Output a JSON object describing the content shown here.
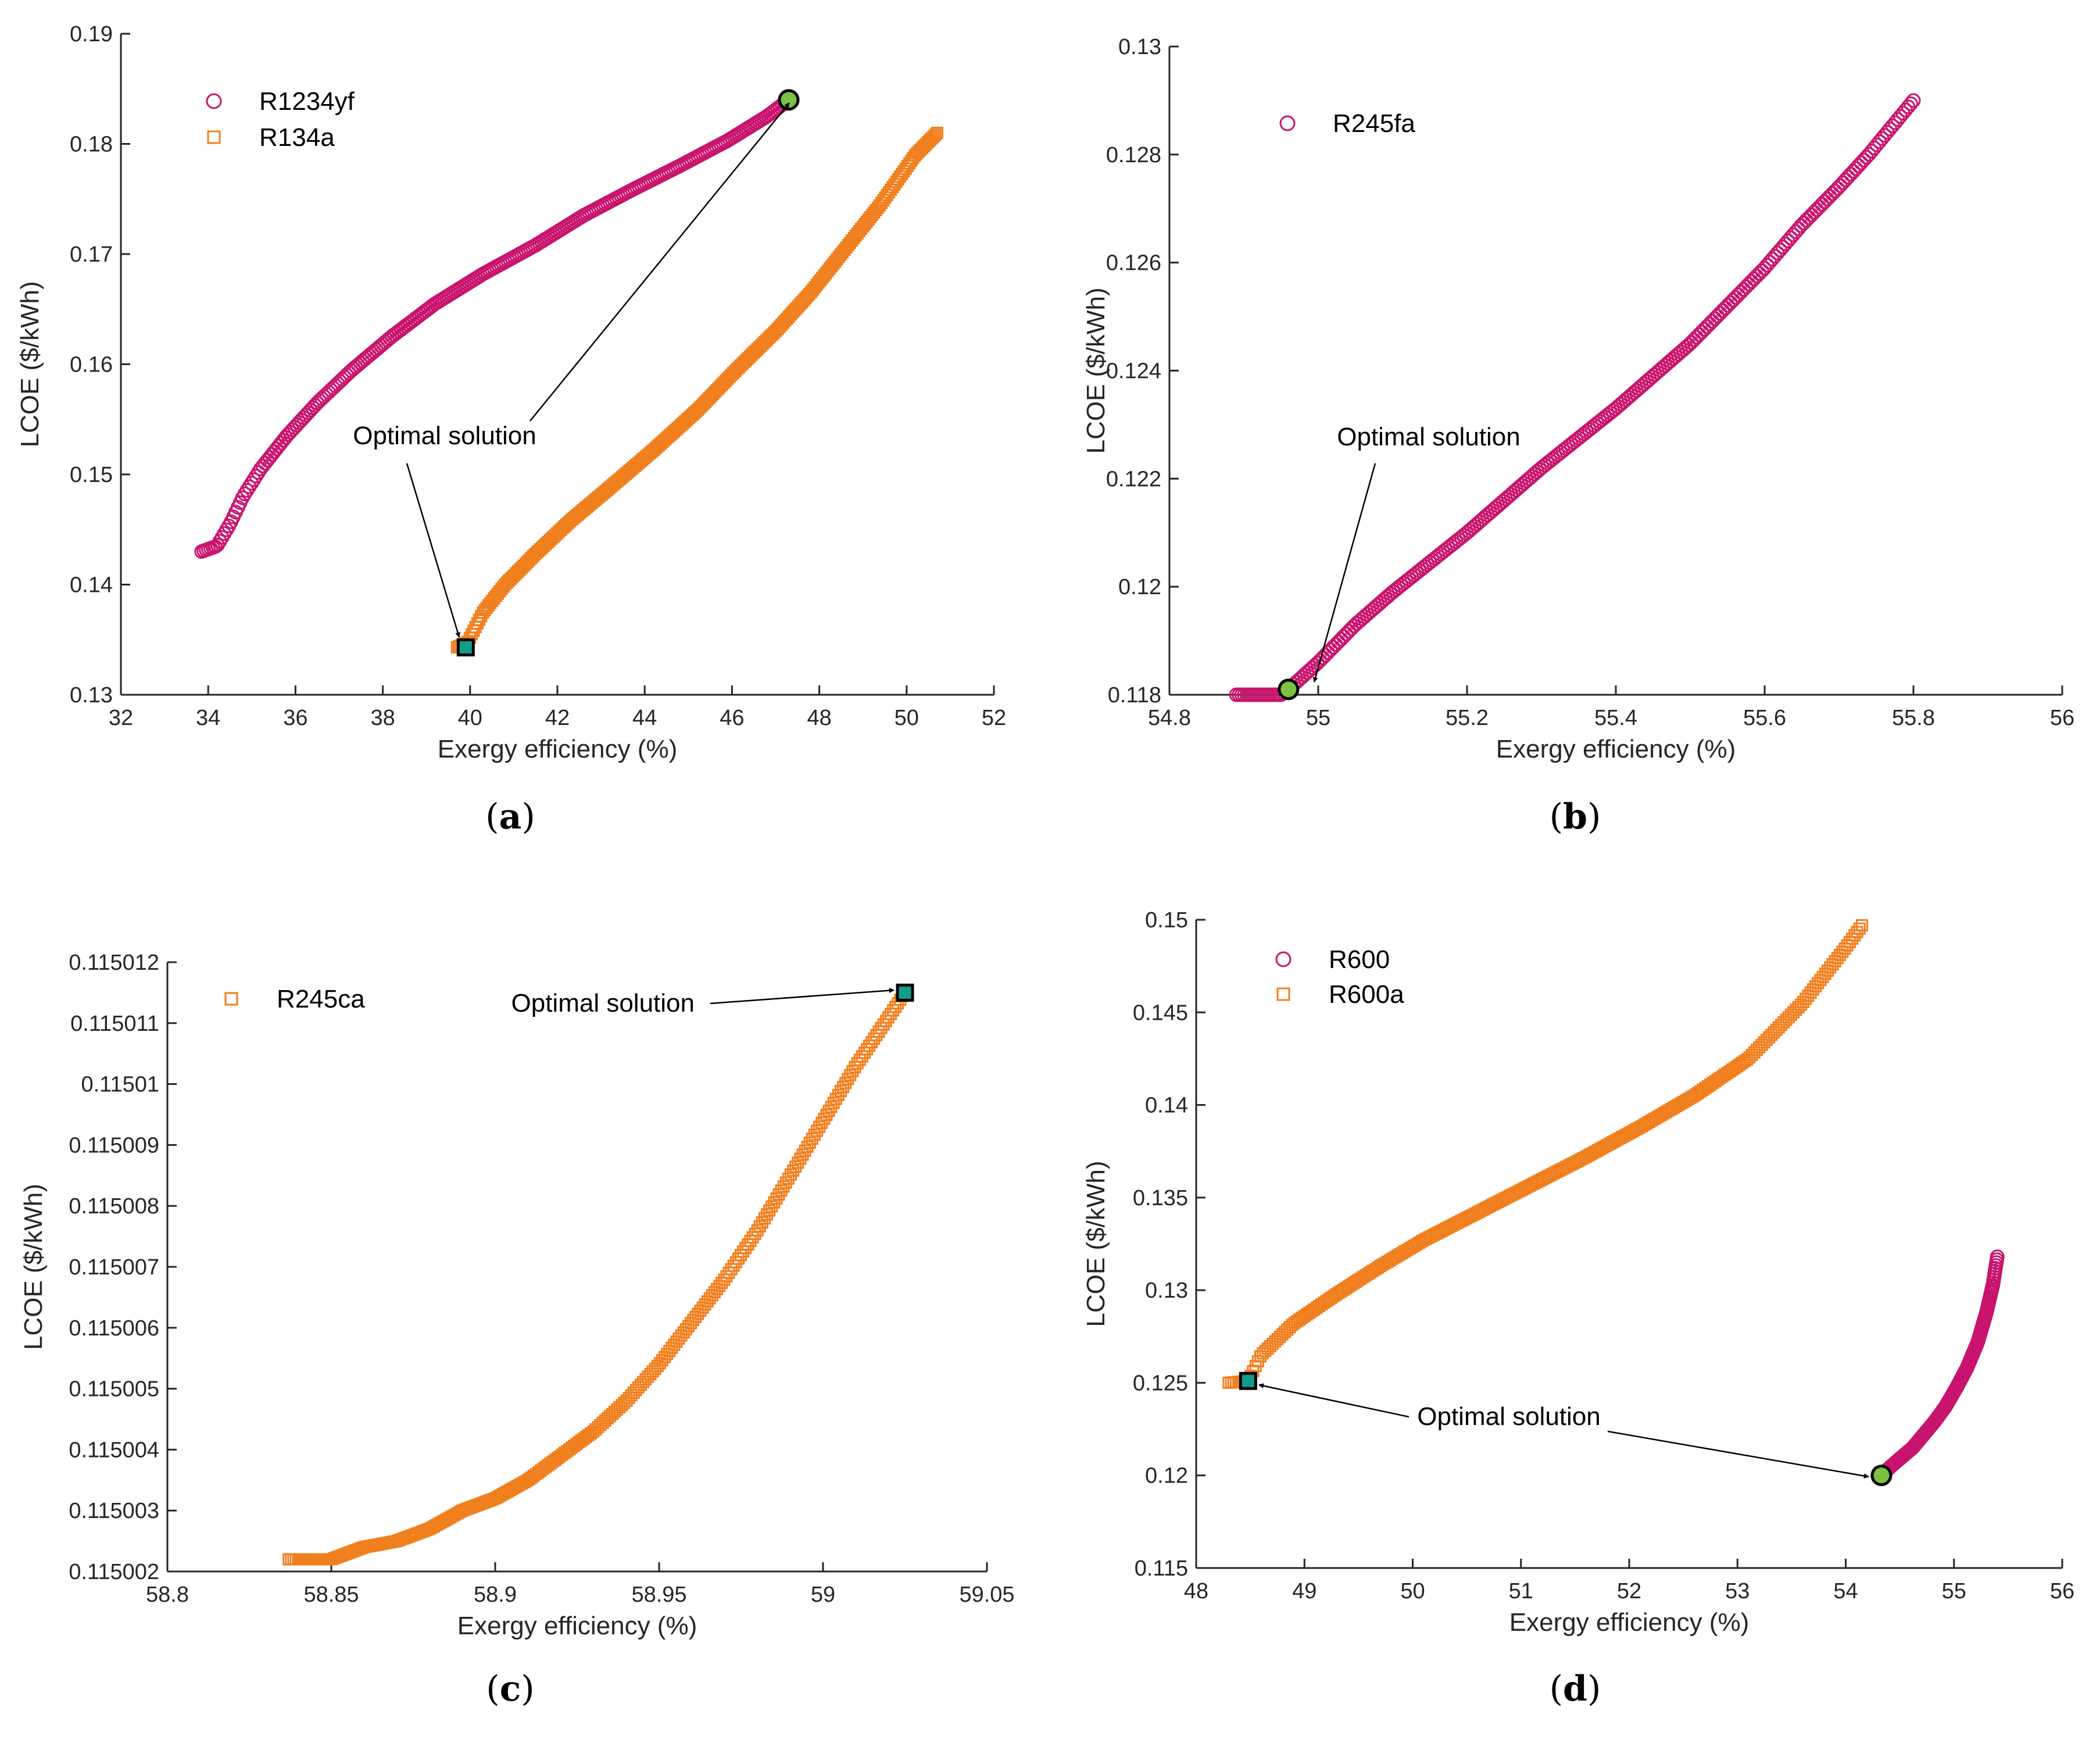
{
  "figure": {
    "colors": {
      "circle_marker": "#c8146e",
      "square_marker": "#f07f1e",
      "optimal_circle_fill": "#7cc142",
      "optimal_square_fill": "#129c8c",
      "axis": "#262626"
    }
  },
  "chart_data": [
    {
      "panel": "a",
      "caption_prefix": "(",
      "caption_letter": "a",
      "caption_suffix": ")",
      "type": "scatter",
      "xlabel": "Exergy efficiency (%)",
      "ylabel": "LCOE ($/kWh)",
      "xlim": [
        32,
        52
      ],
      "ylim": [
        0.13,
        0.19
      ],
      "xticks": [
        32,
        34,
        36,
        38,
        40,
        42,
        44,
        46,
        48,
        50,
        52
      ],
      "xtick_labels": [
        "32",
        "34",
        "36",
        "38",
        "40",
        "42",
        "44",
        "46",
        "48",
        "50",
        "52"
      ],
      "yticks": [
        0.13,
        0.14,
        0.15,
        0.16,
        0.17,
        0.18,
        0.19
      ],
      "ytick_labels": [
        "0.13",
        "0.14",
        "0.15",
        "0.16",
        "0.17",
        "0.18",
        "0.19"
      ],
      "legend_location": "top-left",
      "series": [
        {
          "name": "R1234yf",
          "marker": "circle",
          "x": [
            33.85,
            34.2,
            34.5,
            34.8,
            35.2,
            35.8,
            36.5,
            37.3,
            38.2,
            39.2,
            40.3,
            41.5,
            42.6,
            43.7,
            44.8,
            45.9,
            46.8,
            47.3
          ],
          "y": [
            0.143,
            0.1435,
            0.1455,
            0.148,
            0.1505,
            0.1535,
            0.1565,
            0.1595,
            0.1625,
            0.1655,
            0.1682,
            0.1708,
            0.1735,
            0.1758,
            0.178,
            0.1803,
            0.1825,
            0.184
          ]
        },
        {
          "name": "R134a",
          "marker": "square",
          "x": [
            39.7,
            39.95,
            40.3,
            40.8,
            41.5,
            42.3,
            43.2,
            44.2,
            45.2,
            46.1,
            47.0,
            47.8,
            48.6,
            49.4,
            50.2,
            50.7
          ],
          "y": [
            0.1343,
            0.1348,
            0.1375,
            0.14,
            0.1428,
            0.1458,
            0.1488,
            0.1522,
            0.1558,
            0.1595,
            0.163,
            0.1665,
            0.1705,
            0.1745,
            0.179,
            0.181
          ]
        }
      ],
      "optimal": [
        {
          "series": "R1234yf",
          "x": 47.3,
          "y": 0.184
        },
        {
          "series": "R134a",
          "x": 39.9,
          "y": 0.1343
        }
      ],
      "annotation": "Optimal solution"
    },
    {
      "panel": "b",
      "caption_prefix": "(",
      "caption_letter": "b",
      "caption_suffix": ")",
      "type": "scatter",
      "xlabel": "Exergy efficiency (%)",
      "ylabel": "LCOE ($/kWh)",
      "xlim": [
        54.8,
        56
      ],
      "ylim": [
        0.118,
        0.13
      ],
      "xticks": [
        54.8,
        55,
        55.2,
        55.4,
        55.6,
        55.8,
        56
      ],
      "xtick_labels": [
        "54.8",
        "55",
        "55.2",
        "55.4",
        "55.6",
        "55.8",
        "56"
      ],
      "yticks": [
        0.118,
        0.12,
        0.122,
        0.124,
        0.126,
        0.128,
        0.13
      ],
      "ytick_labels": [
        "0.118",
        "0.12",
        "0.122",
        "0.124",
        "0.126",
        "0.128",
        "0.13"
      ],
      "legend_location": "top-left",
      "series": [
        {
          "name": "R245fa",
          "marker": "circle",
          "x": [
            54.89,
            54.92,
            54.95,
            54.96,
            55.0,
            55.05,
            55.1,
            55.2,
            55.3,
            55.4,
            55.5,
            55.55,
            55.6,
            55.65,
            55.7,
            55.74,
            55.77,
            55.8
          ],
          "y": [
            0.118,
            0.118,
            0.118,
            0.1181,
            0.1186,
            0.1193,
            0.1199,
            0.121,
            0.1222,
            0.1233,
            0.1245,
            0.1252,
            0.1259,
            0.1267,
            0.1274,
            0.128,
            0.1285,
            0.129
          ]
        }
      ],
      "optimal": [
        {
          "series": "R245fa",
          "x": 54.96,
          "y": 0.1181
        }
      ],
      "annotation": "Optimal solution"
    },
    {
      "panel": "c",
      "caption_prefix": "(",
      "caption_letter": "c",
      "caption_suffix": ")",
      "type": "scatter",
      "xlabel": "Exergy efficiency (%)",
      "ylabel": "LCOE ($/kWh)",
      "xlim": [
        58.8,
        59.05
      ],
      "ylim": [
        0.115002,
        0.115012
      ],
      "xticks": [
        58.8,
        58.85,
        58.9,
        58.95,
        59,
        59.05
      ],
      "xtick_labels": [
        "58.8",
        "58.85",
        "58.9",
        "58.95",
        "59",
        "59.05"
      ],
      "yticks": [
        0.115002,
        0.115003,
        0.115004,
        0.115005,
        0.115006,
        0.115007,
        0.115008,
        0.115009,
        0.11501,
        0.115011,
        0.115012
      ],
      "ytick_labels": [
        "0.115002",
        "0.115003",
        "0.115004",
        "0.115005",
        "0.115006",
        "0.115007",
        "0.115008",
        "0.115009",
        "0.11501",
        "0.115011",
        "0.115012"
      ],
      "legend_location": "top-left",
      "series": [
        {
          "name": "R245ca",
          "marker": "square",
          "x": [
            58.837,
            58.85,
            58.86,
            58.87,
            58.88,
            58.89,
            58.9,
            58.91,
            58.92,
            58.93,
            58.94,
            58.95,
            58.96,
            58.97,
            58.98,
            58.99,
            59.0,
            59.01,
            59.02,
            59.025
          ],
          "y": [
            0.1150022,
            0.1150022,
            0.1150024,
            0.1150025,
            0.1150027,
            0.115003,
            0.1150032,
            0.1150035,
            0.1150039,
            0.1150043,
            0.1150048,
            0.1150054,
            0.1150061,
            0.1150068,
            0.1150076,
            0.1150085,
            0.1150094,
            0.1150103,
            0.1150111,
            0.1150115
          ]
        }
      ],
      "optimal": [
        {
          "series": "R245ca",
          "x": 59.025,
          "y": 0.1150115
        }
      ],
      "annotation": "Optimal solution"
    },
    {
      "panel": "d",
      "caption_prefix": "(",
      "caption_letter": "d",
      "caption_suffix": ")",
      "type": "scatter",
      "xlabel": "Exergy efficiency (%)",
      "ylabel": "LCOE ($/kWh)",
      "xlim": [
        48,
        56
      ],
      "ylim": [
        0.115,
        0.15
      ],
      "xticks": [
        48,
        49,
        50,
        51,
        52,
        53,
        54,
        55,
        56
      ],
      "xtick_labels": [
        "48",
        "49",
        "50",
        "51",
        "52",
        "53",
        "54",
        "55",
        "56"
      ],
      "yticks": [
        0.115,
        0.12,
        0.125,
        0.13,
        0.135,
        0.14,
        0.145,
        0.15
      ],
      "ytick_labels": [
        "0.115",
        "0.12",
        "0.125",
        "0.13",
        "0.135",
        "0.14",
        "0.145",
        "0.15"
      ],
      "legend_location": "top-left",
      "series": [
        {
          "name": "R600",
          "marker": "circle",
          "x": [
            54.33,
            54.42,
            54.52,
            54.62,
            54.72,
            54.82,
            54.92,
            55.02,
            55.12,
            55.22,
            55.3,
            55.36,
            55.4
          ],
          "y": [
            0.12,
            0.1205,
            0.121,
            0.1215,
            0.1222,
            0.1229,
            0.1237,
            0.1247,
            0.1258,
            0.1272,
            0.1288,
            0.1303,
            0.1318
          ]
        },
        {
          "name": "R600a",
          "marker": "square",
          "x": [
            48.3,
            48.48,
            48.6,
            48.9,
            49.3,
            49.7,
            50.1,
            50.6,
            51.1,
            51.6,
            52.1,
            52.6,
            53.1,
            53.6,
            54.0,
            54.15
          ],
          "y": [
            0.125,
            0.1251,
            0.1265,
            0.1282,
            0.1298,
            0.1313,
            0.1327,
            0.1342,
            0.1357,
            0.1372,
            0.1388,
            0.1405,
            0.1425,
            0.1455,
            0.1485,
            0.1497
          ]
        }
      ],
      "optimal": [
        {
          "series": "R600a",
          "x": 48.48,
          "y": 0.1251
        },
        {
          "series": "R600",
          "x": 54.33,
          "y": 0.12
        }
      ],
      "annotation": "Optimal solution"
    }
  ]
}
